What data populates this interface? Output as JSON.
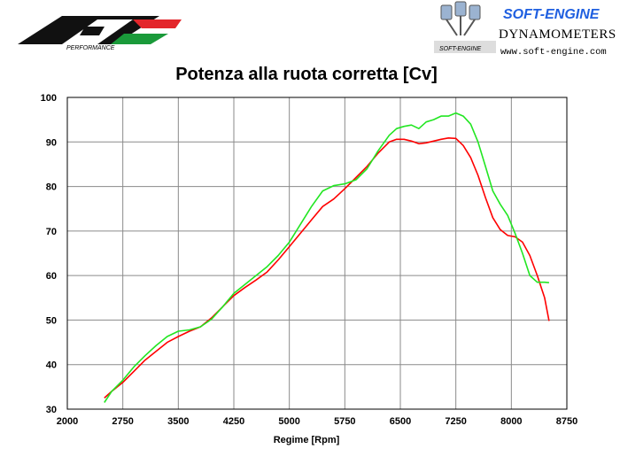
{
  "brand": {
    "name": "SOFT-ENGINE",
    "subtitle": "DYNAMOMETERS",
    "url": "www.soft-engine.com",
    "stamp": "SOFT-ENGINE",
    "colors": {
      "blue": "#1f5fe0",
      "red": "#e3262b",
      "green": "#1a9a3a"
    }
  },
  "chart_data": {
    "type": "line",
    "title": "Potenza alla ruota corretta [Cv]",
    "xlabel": "Regime [Rpm]",
    "ylabel": "",
    "xlim": [
      2000,
      8750
    ],
    "ylim": [
      30,
      100
    ],
    "xticks": [
      2000,
      2750,
      3500,
      4250,
      5000,
      5750,
      6500,
      7250,
      8000,
      8750
    ],
    "yticks": [
      30,
      40,
      50,
      60,
      70,
      80,
      90,
      100
    ],
    "grid": true,
    "series": [
      {
        "color": "#ff0000",
        "x": [
          2500,
          2600,
          2750,
          2900,
          3050,
          3200,
          3350,
          3500,
          3650,
          3800,
          3950,
          4100,
          4250,
          4400,
          4550,
          4700,
          4850,
          5000,
          5150,
          5300,
          5450,
          5600,
          5750,
          5900,
          6050,
          6200,
          6350,
          6450,
          6550,
          6650,
          6750,
          6850,
          6950,
          7050,
          7150,
          7250,
          7350,
          7450,
          7550,
          7650,
          7750,
          7850,
          7950,
          8050,
          8150,
          8250,
          8350,
          8450,
          8510
        ],
        "y": [
          32.5,
          34,
          36,
          38.5,
          41,
          43,
          45,
          46.3,
          47.5,
          48.5,
          50.5,
          53,
          55.5,
          57.3,
          59,
          60.8,
          63.5,
          66.5,
          69.5,
          72.5,
          75.5,
          77.2,
          79.5,
          82,
          84.5,
          87.5,
          90,
          90.6,
          90.6,
          90.2,
          89.6,
          89.8,
          90.2,
          90.6,
          90.9,
          90.8,
          89.2,
          86.5,
          82.5,
          77.5,
          73,
          70.3,
          69,
          68.7,
          67.5,
          64.5,
          60,
          55,
          49.8
        ]
      },
      {
        "color": "#22e622",
        "x": [
          2500,
          2600,
          2750,
          2900,
          3050,
          3200,
          3350,
          3500,
          3650,
          3800,
          3950,
          4100,
          4250,
          4400,
          4550,
          4700,
          4850,
          5000,
          5150,
          5300,
          5450,
          5600,
          5750,
          5900,
          6050,
          6200,
          6350,
          6450,
          6550,
          6650,
          6750,
          6850,
          6950,
          7050,
          7150,
          7250,
          7350,
          7450,
          7550,
          7650,
          7750,
          7850,
          7950,
          8050,
          8150,
          8250,
          8350,
          8450,
          8510
        ],
        "y": [
          31.5,
          34,
          36.5,
          39.5,
          42,
          44.3,
          46.3,
          47.5,
          47.8,
          48.5,
          50.2,
          53,
          56,
          58,
          60,
          62,
          64.5,
          67.5,
          71.5,
          75.5,
          79,
          80.2,
          80.6,
          81.5,
          84,
          88,
          91.5,
          93,
          93.5,
          93.8,
          93,
          94.5,
          95,
          95.8,
          95.8,
          96.5,
          95.8,
          94,
          90,
          84.5,
          79,
          76,
          73.5,
          69.5,
          65,
          60,
          58.5,
          58.5,
          58.4
        ]
      }
    ]
  }
}
